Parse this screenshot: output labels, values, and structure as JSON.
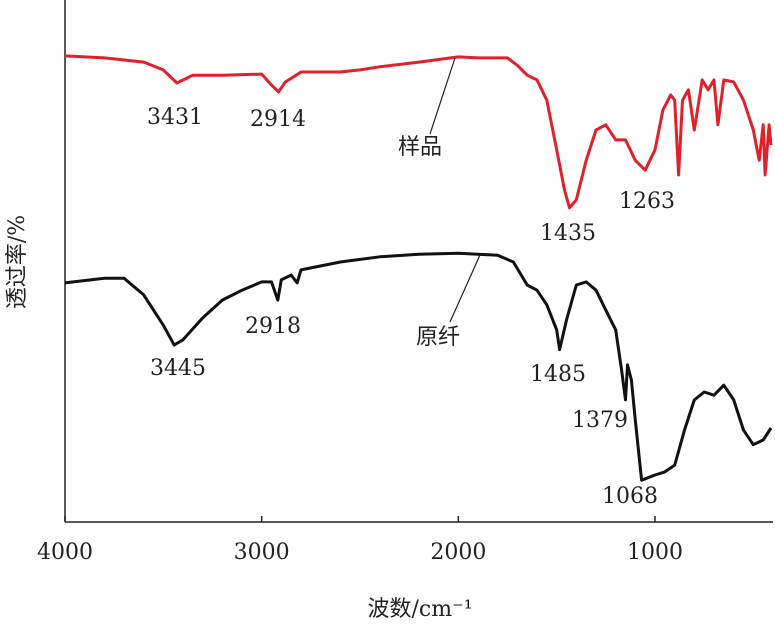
{
  "chart_data": {
    "type": "line",
    "xlabel": "波数/cm⁻¹",
    "ylabel": "透过率/%",
    "xlim": [
      4000,
      400
    ],
    "ylim": [
      0,
      100
    ],
    "xticks": [
      4000,
      3000,
      2000,
      1000
    ],
    "series": [
      {
        "name": "样品",
        "color": "#e0202a",
        "x": [
          4000,
          3800,
          3600,
          3500,
          3431,
          3350,
          3200,
          3000,
          2950,
          2914,
          2880,
          2800,
          2600,
          2500,
          2400,
          2200,
          2000,
          1900,
          1750,
          1700,
          1650,
          1600,
          1550,
          1500,
          1460,
          1435,
          1400,
          1350,
          1300,
          1250,
          1200,
          1150,
          1100,
          1050,
          1000,
          960,
          920,
          900,
          880,
          860,
          830,
          800,
          780,
          760,
          730,
          700,
          680,
          650,
          600,
          550,
          500,
          470,
          450,
          440,
          420,
          410
        ],
        "values": [
          89.3,
          88.9,
          88.1,
          86.6,
          84.1,
          85.6,
          85.6,
          85.8,
          83.7,
          82.4,
          84.3,
          86.2,
          86.2,
          86.6,
          87.2,
          88.1,
          89.1,
          88.9,
          88.9,
          87.5,
          85.6,
          84.7,
          80.8,
          71.3,
          63.6,
          60.2,
          61.7,
          69.3,
          75.1,
          76.1,
          73.2,
          73.2,
          69.3,
          67.4,
          71.3,
          78.9,
          81.8,
          80.8,
          66.5,
          80.8,
          82.8,
          75.1,
          79.9,
          84.7,
          82.8,
          84.7,
          76.1,
          84.7,
          84.3,
          80.8,
          75.1,
          69.3,
          76.1,
          66.5,
          76.1,
          72.2
        ],
        "peaks": [
          3431,
          2914,
          1435,
          1263
        ]
      },
      {
        "name": "原纤",
        "color": "#111111",
        "x": [
          4000,
          3800,
          3700,
          3600,
          3500,
          3445,
          3400,
          3300,
          3200,
          3100,
          3000,
          2950,
          2918,
          2900,
          2850,
          2820,
          2800,
          2600,
          2400,
          2200,
          2000,
          1800,
          1720,
          1650,
          1600,
          1550,
          1500,
          1485,
          1450,
          1400,
          1350,
          1300,
          1250,
          1200,
          1170,
          1150,
          1140,
          1120,
          1100,
          1068,
          1000,
          950,
          900,
          850,
          800,
          750,
          700,
          650,
          600,
          550,
          500,
          450,
          410
        ],
        "values": [
          45.8,
          46.7,
          46.7,
          43.5,
          37.7,
          33.9,
          34.9,
          39.1,
          42.5,
          44.4,
          46.0,
          46.0,
          42.5,
          46.4,
          47.3,
          45.8,
          48.3,
          49.8,
          50.8,
          51.3,
          51.5,
          51.1,
          49.8,
          45.4,
          44.4,
          41.6,
          36.8,
          33.0,
          38.7,
          45.4,
          46.0,
          44.4,
          40.6,
          36.8,
          29.1,
          23.4,
          30.1,
          27.2,
          19.5,
          8.0,
          9.0,
          9.6,
          10.9,
          17.6,
          23.4,
          24.9,
          24.3,
          26.2,
          23.4,
          17.6,
          14.8,
          15.7,
          18.0
        ],
        "peaks": [
          3445,
          2918,
          1485,
          1379,
          1068
        ]
      }
    ]
  }
}
